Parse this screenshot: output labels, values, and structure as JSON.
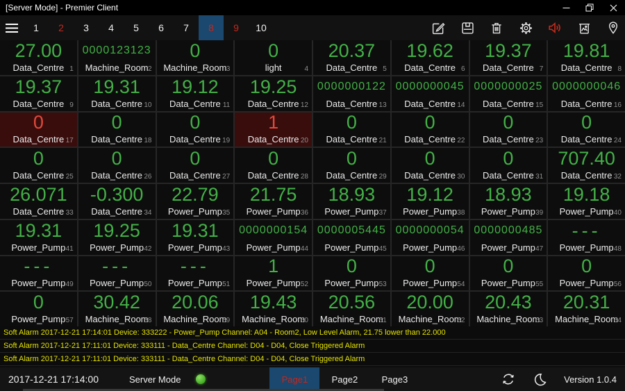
{
  "window": {
    "title": "[Server Mode] - Premier Client",
    "controls": [
      "minimize",
      "maximize",
      "close"
    ]
  },
  "tabbar": {
    "tabs": [
      {
        "label": "1",
        "state": "normal"
      },
      {
        "label": "2",
        "state": "alarm"
      },
      {
        "label": "3",
        "state": "normal"
      },
      {
        "label": "4",
        "state": "normal"
      },
      {
        "label": "5",
        "state": "normal"
      },
      {
        "label": "6",
        "state": "normal"
      },
      {
        "label": "7",
        "state": "normal"
      },
      {
        "label": "8",
        "state": "selected"
      },
      {
        "label": "9",
        "state": "alarm"
      },
      {
        "label": "10",
        "state": "normal"
      }
    ],
    "toolbar_icons": [
      "edit",
      "save",
      "delete",
      "settings",
      "audio-mute",
      "clear-snapshot",
      "location"
    ]
  },
  "grid": {
    "cells": [
      {
        "value": "27.00",
        "label": "Data_Centre",
        "index": "1",
        "state": "normal"
      },
      {
        "value": "0000123123",
        "label": "Machine_Room",
        "index": "2",
        "state": "normal"
      },
      {
        "value": "0",
        "label": "Machine_Room",
        "index": "3",
        "state": "normal"
      },
      {
        "value": "0",
        "label": "light",
        "index": "4",
        "state": "normal"
      },
      {
        "value": "20.37",
        "label": "Data_Centre",
        "index": "5",
        "state": "normal"
      },
      {
        "value": "19.62",
        "label": "Data_Centre",
        "index": "6",
        "state": "normal"
      },
      {
        "value": "19.37",
        "label": "Data_Centre",
        "index": "7",
        "state": "normal"
      },
      {
        "value": "19.81",
        "label": "Data_Centre",
        "index": "8",
        "state": "normal"
      },
      {
        "value": "19.37",
        "label": "Data_Centre",
        "index": "9",
        "state": "normal"
      },
      {
        "value": "19.31",
        "label": "Data_Centre",
        "index": "10",
        "state": "normal"
      },
      {
        "value": "19.12",
        "label": "Data_Centre",
        "index": "11",
        "state": "normal"
      },
      {
        "value": "19.25",
        "label": "Data_Centre",
        "index": "12",
        "state": "normal"
      },
      {
        "value": "0000000122",
        "label": "Data_Centre",
        "index": "13",
        "state": "normal"
      },
      {
        "value": "0000000045",
        "label": "Data_Centre",
        "index": "14",
        "state": "normal"
      },
      {
        "value": "0000000025",
        "label": "Data_Centre",
        "index": "15",
        "state": "normal"
      },
      {
        "value": "0000000046",
        "label": "Data_Centre",
        "index": "16",
        "state": "normal"
      },
      {
        "value": "0",
        "label": "Data_Centre",
        "index": "17",
        "state": "alarm"
      },
      {
        "value": "0",
        "label": "Data_Centre",
        "index": "18",
        "state": "normal"
      },
      {
        "value": "0",
        "label": "Data_Centre",
        "index": "19",
        "state": "normal"
      },
      {
        "value": "1",
        "label": "Data_Centre",
        "index": "20",
        "state": "alarm"
      },
      {
        "value": "0",
        "label": "Data_Centre",
        "index": "21",
        "state": "normal"
      },
      {
        "value": "0",
        "label": "Data_Centre",
        "index": "22",
        "state": "normal"
      },
      {
        "value": "0",
        "label": "Data_Centre",
        "index": "23",
        "state": "normal"
      },
      {
        "value": "0",
        "label": "Data_Centre",
        "index": "24",
        "state": "normal"
      },
      {
        "value": "0",
        "label": "Data_Centre",
        "index": "25",
        "state": "normal"
      },
      {
        "value": "0",
        "label": "Data_Centre",
        "index": "26",
        "state": "normal"
      },
      {
        "value": "0",
        "label": "Data_Centre",
        "index": "27",
        "state": "normal"
      },
      {
        "value": "0",
        "label": "Data_Centre",
        "index": "28",
        "state": "normal"
      },
      {
        "value": "0",
        "label": "Data_Centre",
        "index": "29",
        "state": "normal"
      },
      {
        "value": "0",
        "label": "Data_Centre",
        "index": "30",
        "state": "normal"
      },
      {
        "value": "0",
        "label": "Data_Centre",
        "index": "31",
        "state": "normal"
      },
      {
        "value": "707.40",
        "label": "Data_Centre",
        "index": "32",
        "state": "normal"
      },
      {
        "value": "26.071",
        "label": "Data_Centre",
        "index": "33",
        "state": "normal"
      },
      {
        "value": "-0.300",
        "label": "Data_Centre",
        "index": "34",
        "state": "normal"
      },
      {
        "value": "22.79",
        "label": "Power_Pump",
        "index": "35",
        "state": "normal"
      },
      {
        "value": "21.75",
        "label": "Power_Pump",
        "index": "36",
        "state": "normal"
      },
      {
        "value": "18.93",
        "label": "Power_Pump",
        "index": "37",
        "state": "normal"
      },
      {
        "value": "19.12",
        "label": "Power_Pump",
        "index": "38",
        "state": "normal"
      },
      {
        "value": "18.93",
        "label": "Power_Pump",
        "index": "39",
        "state": "normal"
      },
      {
        "value": "19.18",
        "label": "Power_Pump",
        "index": "40",
        "state": "normal"
      },
      {
        "value": "19.31",
        "label": "Power_Pump",
        "index": "41",
        "state": "normal"
      },
      {
        "value": "19.25",
        "label": "Power_Pump",
        "index": "42",
        "state": "normal"
      },
      {
        "value": "19.31",
        "label": "Power_Pump",
        "index": "43",
        "state": "normal"
      },
      {
        "value": "0000000154",
        "label": "Power_Pump",
        "index": "44",
        "state": "normal"
      },
      {
        "value": "0000005445",
        "label": "Power_Pump",
        "index": "45",
        "state": "normal"
      },
      {
        "value": "0000000054",
        "label": "Power_Pump",
        "index": "46",
        "state": "normal"
      },
      {
        "value": "0000000485",
        "label": "Power_Pump",
        "index": "47",
        "state": "normal"
      },
      {
        "value": "---",
        "label": "Power_Pump",
        "index": "48",
        "state": "normal"
      },
      {
        "value": "---",
        "label": "Power_Pump",
        "index": "49",
        "state": "normal"
      },
      {
        "value": "---",
        "label": "Power_Pump",
        "index": "50",
        "state": "normal"
      },
      {
        "value": "---",
        "label": "Power_Pump",
        "index": "51",
        "state": "normal"
      },
      {
        "value": "1",
        "label": "Power_Pump",
        "index": "52",
        "state": "normal"
      },
      {
        "value": "0",
        "label": "Power_Pump",
        "index": "53",
        "state": "normal"
      },
      {
        "value": "0",
        "label": "Power_Pump",
        "index": "54",
        "state": "normal"
      },
      {
        "value": "0",
        "label": "Power_Pump",
        "index": "55",
        "state": "normal"
      },
      {
        "value": "0",
        "label": "Power_Pump",
        "index": "56",
        "state": "normal"
      },
      {
        "value": "0",
        "label": "Power_Pump",
        "index": "57",
        "state": "normal"
      },
      {
        "value": "30.42",
        "label": "Machine_Room",
        "index": "58",
        "state": "normal"
      },
      {
        "value": "20.06",
        "label": "Machine_Room",
        "index": "59",
        "state": "normal"
      },
      {
        "value": "19.43",
        "label": "Machine_Room",
        "index": "60",
        "state": "normal"
      },
      {
        "value": "20.56",
        "label": "Machine_Room",
        "index": "61",
        "state": "normal"
      },
      {
        "value": "20.00",
        "label": "Machine_Room",
        "index": "62",
        "state": "normal"
      },
      {
        "value": "20.43",
        "label": "Machine_Room",
        "index": "63",
        "state": "normal"
      },
      {
        "value": "20.31",
        "label": "Machine_Room",
        "index": "64",
        "state": "normal"
      }
    ]
  },
  "alarms": [
    "Soft Alarm 2017-12-21 17:14:01 Device: 333222 - Power_Pump Channel: A04 - Room2, Low Level Alarm, 21.75 lower than 22.000",
    "Soft Alarm 2017-12-21 17:11:01 Device: 333111 - Data_Centre Channel: D04 - D04, Close Triggered Alarm",
    "Soft Alarm 2017-12-21 17:11:01 Device: 333111 - Data_Centre Channel: D04 - D04, Close Triggered Alarm"
  ],
  "statusbar": {
    "datetime": "2017-12-21 17:14:00",
    "mode_label": "Server Mode",
    "status_indicator": "online-green",
    "pages": [
      {
        "label": "Page1",
        "selected": true
      },
      {
        "label": "Page2",
        "selected": false
      },
      {
        "label": "Page3",
        "selected": false
      }
    ],
    "icons": [
      "sync",
      "night-mode"
    ],
    "version": "Version 1.0.4"
  },
  "colors": {
    "value_green": "#43b147",
    "alarm_red": "#e2493b",
    "alarm_cell_bg": "#3a0d0d",
    "selected_blue": "#1a486e",
    "tab_red": "#c5271d",
    "alarm_text_yellow": "#e5e400",
    "status_dot_green": "#52c32e",
    "mute_red": "#c42b1c"
  }
}
